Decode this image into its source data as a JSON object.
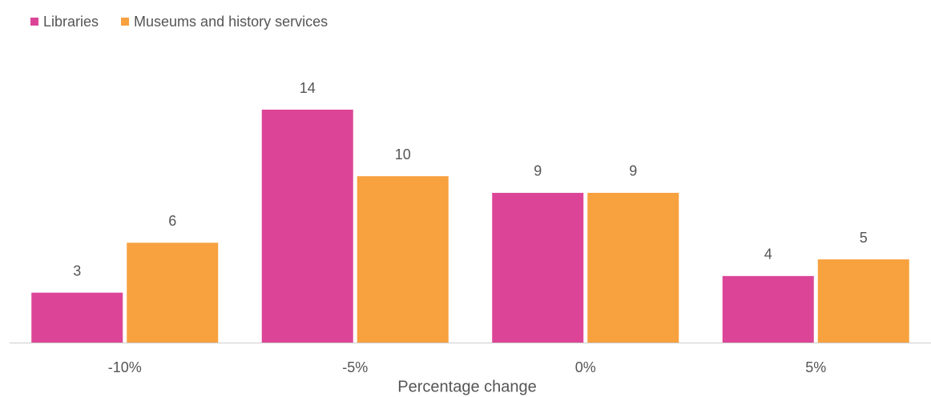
{
  "chart_data": {
    "type": "bar",
    "x_label": "Percentage change",
    "categories": [
      "-10%",
      "-5%",
      "0%",
      "5%"
    ],
    "series": [
      {
        "name": "Libraries",
        "color": "#dc4597",
        "values": [
          3,
          14,
          9,
          4
        ]
      },
      {
        "name": "Museums and history services",
        "color": "#f7a13f",
        "values": [
          6,
          10,
          9,
          5
        ]
      }
    ],
    "legend": "top-left"
  }
}
